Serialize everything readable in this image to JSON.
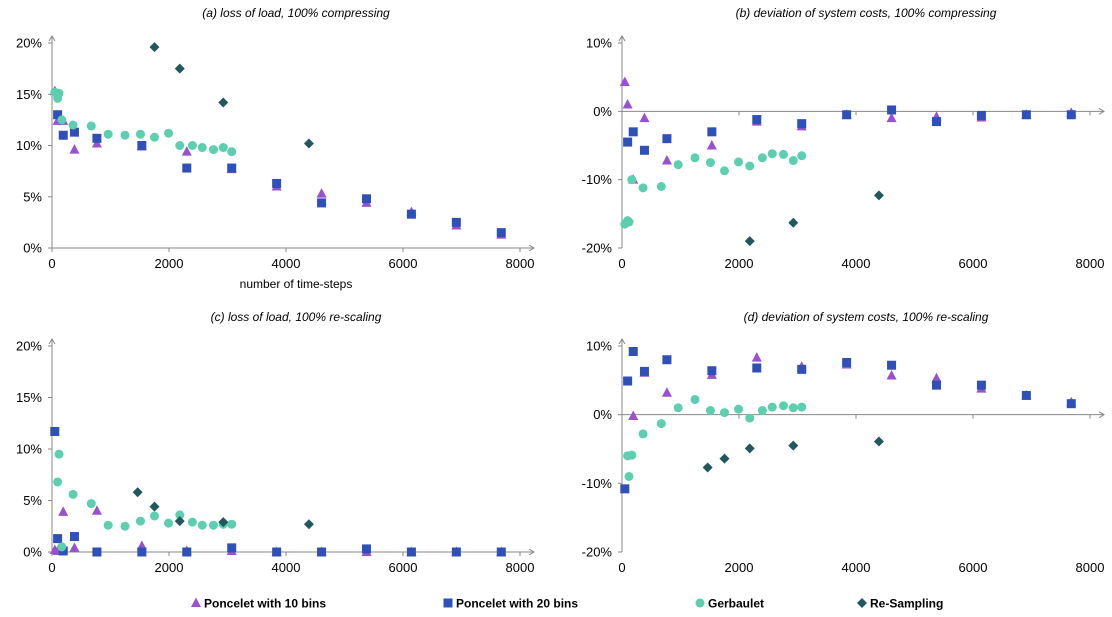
{
  "colors": {
    "poncelet10": "#9b4fd1",
    "poncelet20": "#2f50b8",
    "gerbaulet": "#5ccfb0",
    "resampling": "#21585f",
    "axis": "#888888",
    "text": "#000000"
  },
  "legend": [
    {
      "key": "poncelet10",
      "label": "Poncelet with 10 bins",
      "marker": "triangle"
    },
    {
      "key": "poncelet20",
      "label": "Poncelet with 20 bins",
      "marker": "square"
    },
    {
      "key": "gerbaulet",
      "label": "Gerbaulet",
      "marker": "circle"
    },
    {
      "key": "resampling",
      "label": "Re-Sampling",
      "marker": "diamond"
    }
  ],
  "chart_data": [
    {
      "id": "a",
      "type": "scatter",
      "title": "(a) loss of load, 100% compressing",
      "xlabel": "number of time-steps",
      "ylabel": "",
      "xlim": [
        0,
        8000
      ],
      "ylim": [
        0,
        20
      ],
      "xticks": [
        0,
        2000,
        4000,
        6000,
        8000
      ],
      "xtick_labels": [
        "0",
        "2000",
        "4000",
        "6000",
        "8000"
      ],
      "yticks": [
        0,
        5,
        10,
        15,
        20
      ],
      "ytick_labels": [
        "0%",
        "5%",
        "10%",
        "15%",
        "20%"
      ],
      "series": [
        {
          "key": "poncelet10",
          "name": "Poncelet with 10 bins",
          "x": [
            48,
            96,
            192,
            384,
            768,
            1536,
            2304,
            3072,
            3840,
            4608,
            5376,
            6144,
            6912,
            7680
          ],
          "y": [
            15.3,
            12.4,
            12.4,
            9.6,
            10.2,
            9.9,
            9.4,
            7.7,
            6.0,
            5.3,
            4.4,
            3.5,
            2.2,
            1.3
          ]
        },
        {
          "key": "poncelet20",
          "name": "Poncelet with 20 bins",
          "x": [
            96,
            192,
            384,
            768,
            1536,
            2304,
            3072,
            3840,
            4608,
            5376,
            6144,
            6912,
            7680
          ],
          "y": [
            13.0,
            11.0,
            11.3,
            10.7,
            10.0,
            7.8,
            7.8,
            6.3,
            4.4,
            4.8,
            3.3,
            2.5,
            1.5
          ]
        },
        {
          "key": "gerbaulet",
          "name": "Gerbaulet",
          "x": [
            48,
            96,
            120,
            168,
            360,
            672,
            960,
            1248,
            1512,
            1752,
            1992,
            2184,
            2400,
            2568,
            2760,
            2928,
            3072
          ],
          "y": [
            15.2,
            14.6,
            15.1,
            12.5,
            12.0,
            11.9,
            11.1,
            11.0,
            11.1,
            10.8,
            11.2,
            10.0,
            10.0,
            9.8,
            9.6,
            9.8,
            9.4
          ]
        },
        {
          "key": "resampling",
          "name": "Re-Sampling",
          "x": [
            1752,
            2184,
            2928,
            4392
          ],
          "y": [
            19.6,
            17.5,
            14.2,
            10.2
          ]
        }
      ]
    },
    {
      "id": "b",
      "type": "scatter",
      "title": "(b) deviation of system costs, 100% compressing",
      "xlabel": "",
      "ylabel": "",
      "xlim": [
        0,
        8000
      ],
      "ylim": [
        -20,
        10
      ],
      "xticks": [
        0,
        2000,
        4000,
        6000,
        8000
      ],
      "xtick_labels": [
        "0",
        "2000",
        "4000",
        "6000",
        "8000"
      ],
      "yticks": [
        -20,
        -10,
        0,
        10
      ],
      "ytick_labels": [
        "-20%",
        "-10%",
        "0%",
        "10%"
      ],
      "series": [
        {
          "key": "poncelet10",
          "name": "Poncelet with 10 bins",
          "x": [
            48,
            96,
            192,
            384,
            768,
            1536,
            2304,
            3072,
            3840,
            4608,
            5376,
            6144,
            6912,
            7680
          ],
          "y": [
            4.3,
            1.0,
            -10.0,
            -1.0,
            -7.2,
            -5.0,
            -1.5,
            -2.2,
            -0.5,
            -1.0,
            -0.8,
            -0.9,
            -0.5,
            -0.2
          ]
        },
        {
          "key": "poncelet20",
          "name": "Poncelet with 20 bins",
          "x": [
            96,
            192,
            384,
            768,
            1536,
            2304,
            3072,
            3840,
            4608,
            5376,
            6144,
            6912,
            7680
          ],
          "y": [
            -4.5,
            -3.0,
            -5.7,
            -4.0,
            -3.0,
            -1.2,
            -1.8,
            -0.5,
            0.2,
            -1.5,
            -0.6,
            -0.5,
            -0.5
          ]
        },
        {
          "key": "gerbaulet",
          "name": "Gerbaulet",
          "x": [
            48,
            96,
            120,
            168,
            360,
            672,
            960,
            1248,
            1512,
            1752,
            1992,
            2184,
            2400,
            2568,
            2760,
            2928,
            3072
          ],
          "y": [
            -16.5,
            -16.0,
            -16.2,
            -10.0,
            -11.2,
            -11.0,
            -7.8,
            -6.8,
            -7.5,
            -8.7,
            -7.4,
            -8.0,
            -6.8,
            -6.2,
            -6.3,
            -7.2,
            -6.5
          ]
        },
        {
          "key": "resampling",
          "name": "Re-Sampling",
          "x": [
            2184,
            2928,
            4392
          ],
          "y": [
            -19.0,
            -16.3,
            -12.3
          ]
        }
      ]
    },
    {
      "id": "c",
      "type": "scatter",
      "title": "(c) loss of load, 100% re-scaling",
      "xlabel": "",
      "ylabel": "",
      "xlim": [
        0,
        8000
      ],
      "ylim": [
        0,
        20
      ],
      "xticks": [
        0,
        2000,
        4000,
        6000,
        8000
      ],
      "xtick_labels": [
        "0",
        "2000",
        "4000",
        "6000",
        "8000"
      ],
      "yticks": [
        0,
        5,
        10,
        15,
        20
      ],
      "ytick_labels": [
        "0%",
        "5%",
        "10%",
        "15%",
        "20%"
      ],
      "series": [
        {
          "key": "poncelet10",
          "name": "Poncelet with 10 bins",
          "x": [
            48,
            96,
            192,
            384,
            768,
            1536,
            2304,
            3072,
            3840,
            4608,
            5376,
            6144,
            6912,
            7680
          ],
          "y": [
            0.2,
            0.1,
            3.9,
            0.4,
            4.0,
            0.6,
            0.1,
            0.1,
            0.0,
            0.0,
            0.0,
            0.0,
            0.0,
            0.0
          ]
        },
        {
          "key": "poncelet20",
          "name": "Poncelet with 20 bins",
          "x": [
            48,
            96,
            192,
            384,
            768,
            1536,
            2304,
            3072,
            3840,
            4608,
            5376,
            6144,
            6912,
            7680
          ],
          "y": [
            11.7,
            1.3,
            0.1,
            1.5,
            0.0,
            0.0,
            0.0,
            0.4,
            0.0,
            0.0,
            0.3,
            0.0,
            0.0,
            0.0
          ]
        },
        {
          "key": "gerbaulet",
          "name": "Gerbaulet",
          "x": [
            96,
            120,
            168,
            360,
            672,
            960,
            1248,
            1512,
            1752,
            1992,
            2184,
            2400,
            2568,
            2760,
            2928,
            3072
          ],
          "y": [
            6.8,
            9.5,
            0.5,
            5.6,
            4.7,
            2.6,
            2.5,
            3.0,
            3.5,
            2.8,
            3.6,
            2.9,
            2.6,
            2.6,
            2.7,
            2.7
          ]
        },
        {
          "key": "resampling",
          "name": "Re-Sampling",
          "x": [
            1464,
            1752,
            2184,
            2928,
            4392
          ],
          "y": [
            5.8,
            4.4,
            3.0,
            2.9,
            2.7
          ]
        }
      ]
    },
    {
      "id": "d",
      "type": "scatter",
      "title": "(d) deviation of system costs, 100% re-scaling",
      "xlabel": "",
      "ylabel": "",
      "xlim": [
        0,
        8000
      ],
      "ylim": [
        -20,
        10
      ],
      "xticks": [
        0,
        2000,
        4000,
        6000,
        8000
      ],
      "xtick_labels": [
        "0",
        "2000",
        "4000",
        "6000",
        "8000"
      ],
      "yticks": [
        -20,
        -10,
        0,
        10
      ],
      "ytick_labels": [
        "-20%",
        "-10%",
        "0%",
        "10%"
      ],
      "series": [
        {
          "key": "poncelet10",
          "name": "Poncelet with 10 bins",
          "x": [
            192,
            384,
            768,
            1536,
            2304,
            3072,
            3840,
            4608,
            5376,
            6144,
            6912,
            7680
          ],
          "y": [
            -0.2,
            6.1,
            3.2,
            5.8,
            8.3,
            7.0,
            7.3,
            5.7,
            5.3,
            3.8,
            2.8,
            1.8
          ]
        },
        {
          "key": "poncelet20",
          "name": "Poncelet with 20 bins",
          "x": [
            48,
            96,
            192,
            384,
            768,
            1536,
            2304,
            3072,
            3840,
            4608,
            5376,
            6144,
            6912,
            7680
          ],
          "y": [
            -10.8,
            4.9,
            9.2,
            6.3,
            8.0,
            6.4,
            6.8,
            6.6,
            7.6,
            7.2,
            4.3,
            4.3,
            2.8,
            1.6
          ]
        },
        {
          "key": "gerbaulet",
          "name": "Gerbaulet",
          "x": [
            96,
            120,
            168,
            360,
            672,
            960,
            1248,
            1512,
            1752,
            1992,
            2184,
            2400,
            2568,
            2760,
            2928,
            3072
          ],
          "y": [
            -6.0,
            -9.0,
            -5.9,
            -2.8,
            -1.3,
            1.0,
            2.2,
            0.6,
            0.3,
            0.8,
            -0.5,
            0.6,
            1.1,
            1.3,
            1.0,
            1.1
          ]
        },
        {
          "key": "resampling",
          "name": "Re-Sampling",
          "x": [
            1464,
            1752,
            2184,
            2928,
            4392
          ],
          "y": [
            -7.7,
            -6.4,
            -4.9,
            -4.5,
            -3.9
          ]
        }
      ]
    }
  ]
}
